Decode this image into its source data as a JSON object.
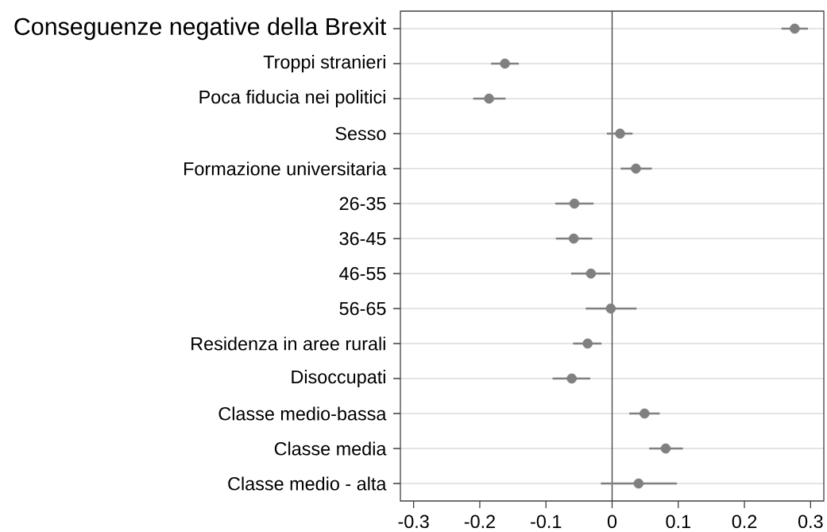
{
  "chart_data": {
    "type": "scatter",
    "orientation": "horizontal",
    "categories": [
      "Conseguenze negative della Brexit",
      "Troppi stranieri",
      "Poca fiducia nei politici",
      "Sesso",
      "Formazione universitaria",
      "26-35",
      "36-45",
      "46-55",
      "56-65",
      "Residenza in aree rurali",
      "Disoccupati",
      "Classe medio-bassa",
      "Classe media",
      "Classe medio - alta"
    ],
    "values": [
      0.276,
      -0.162,
      -0.186,
      0.012,
      0.036,
      -0.057,
      -0.058,
      -0.032,
      -0.002,
      -0.037,
      -0.061,
      0.049,
      0.081,
      0.04
    ],
    "errors": [
      [
        0.256,
        0.296
      ],
      [
        -0.183,
        -0.141
      ],
      [
        -0.21,
        -0.161
      ],
      [
        -0.008,
        0.031
      ],
      [
        0.013,
        0.06
      ],
      [
        -0.086,
        -0.028
      ],
      [
        -0.085,
        -0.03
      ],
      [
        -0.062,
        -0.003
      ],
      [
        -0.04,
        0.037
      ],
      [
        -0.059,
        -0.016
      ],
      [
        -0.09,
        -0.033
      ],
      [
        0.026,
        0.072
      ],
      [
        0.056,
        0.107
      ],
      [
        -0.017,
        0.098
      ]
    ],
    "color": "#808080",
    "marker": "circle",
    "xlim": [
      -0.32,
      0.32
    ],
    "xticks": [
      -0.3,
      -0.2,
      -0.1,
      0,
      0.1,
      0.2,
      0.3
    ],
    "grid": "y",
    "ref_lines": [
      {
        "axis": "x",
        "value": 0,
        "color": "#404040"
      }
    ]
  }
}
